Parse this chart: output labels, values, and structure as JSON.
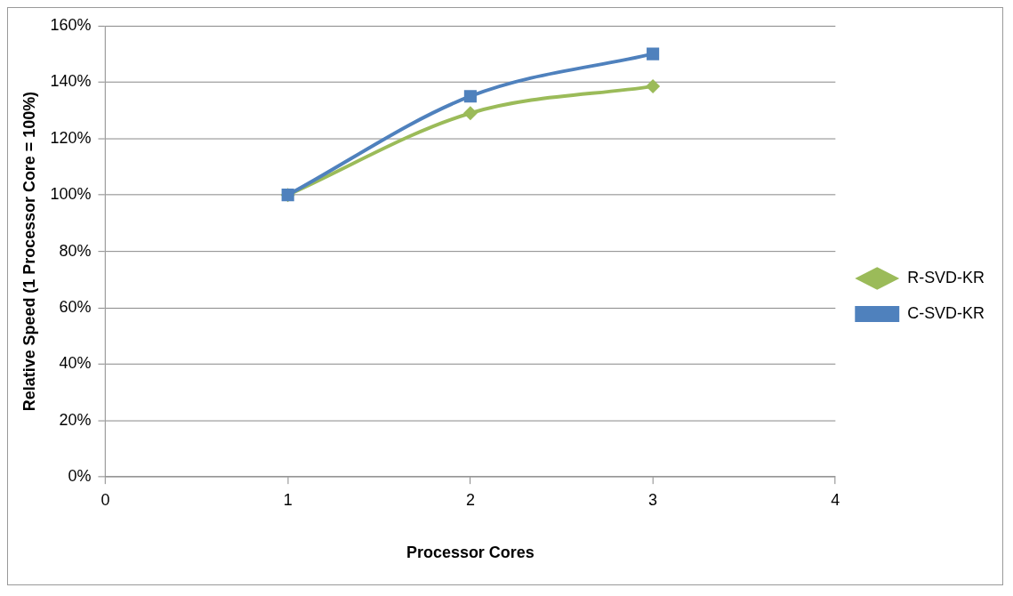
{
  "chart_data": {
    "type": "line",
    "xlabel": "Processor Cores",
    "ylabel": "Relative Speed (1 Processor Core = 100%)",
    "x": [
      1,
      2,
      3
    ],
    "series": [
      {
        "name": "R-SVD-KR",
        "color": "#9bbb59",
        "marker": "diamond",
        "values": [
          100,
          129,
          138.5
        ]
      },
      {
        "name": "C-SVD-KR",
        "color": "#4f81bd",
        "marker": "square",
        "values": [
          100,
          135,
          150
        ]
      }
    ],
    "xlim": [
      0,
      4
    ],
    "xticks": [
      0,
      1,
      2,
      3,
      4
    ],
    "ylim": [
      0,
      160
    ],
    "yticks": [
      {
        "value": 0,
        "label": "0%"
      },
      {
        "value": 20,
        "label": "20%"
      },
      {
        "value": 40,
        "label": "40%"
      },
      {
        "value": 60,
        "label": "60%"
      },
      {
        "value": 80,
        "label": "80%"
      },
      {
        "value": 100,
        "label": "100%"
      },
      {
        "value": 120,
        "label": "120%"
      },
      {
        "value": 140,
        "label": "140%"
      },
      {
        "value": 160,
        "label": "160%"
      }
    ],
    "grid": "y",
    "legend": "right",
    "line_style": "solid"
  }
}
